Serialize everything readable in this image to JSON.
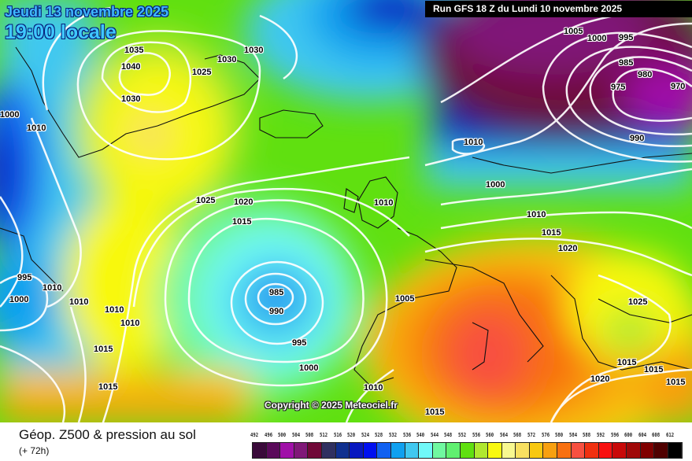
{
  "header": {
    "date": "Jeudi 13 novembre 2025",
    "time": "19:00 locale",
    "run": "Run GFS 18 Z du Lundi 10 novembre 2025"
  },
  "map": {
    "copyright": "Copyright © 2025 Meteociel.fr",
    "isobar_labels": [
      "1035",
      "1040",
      "1030",
      "1025",
      "1030",
      "1030",
      "1005",
      "1000",
      "995",
      "985",
      "980",
      "975",
      "970",
      "990",
      "1010",
      "1000",
      "1010",
      "1010",
      "1015",
      "1020",
      "1025",
      "1020",
      "1015",
      "985",
      "990",
      "995",
      "1000",
      "1005",
      "1025",
      "1010",
      "1010",
      "1015",
      "1015",
      "1000",
      "1010",
      "1010",
      "995",
      "1000",
      "1010",
      "1015",
      "1015",
      "1020",
      "1015",
      "1010",
      "1015"
    ]
  },
  "footer": {
    "title": "Géop. Z500 & pression au sol",
    "subtitle": "(+ 72h)"
  },
  "legend": {
    "values": [
      "492",
      "496",
      "500",
      "504",
      "508",
      "512",
      "516",
      "520",
      "524",
      "528",
      "532",
      "536",
      "540",
      "544",
      "548",
      "552",
      "556",
      "560",
      "564",
      "568",
      "572",
      "576",
      "580",
      "584",
      "588",
      "592",
      "596",
      "600",
      "604",
      "608",
      "612"
    ],
    "colors": [
      "#3a0a3a",
      "#5a0a5a",
      "#a010a8",
      "#801878",
      "#700838",
      "#303060",
      "#103090",
      "#0818c0",
      "#0010f0",
      "#1060f0",
      "#10a0f0",
      "#40c8f0",
      "#70f8f8",
      "#70f8a0",
      "#60f070",
      "#60e010",
      "#b0e830",
      "#f8f810",
      "#f8f890",
      "#f8e060",
      "#f8c810",
      "#f8a010",
      "#f87010",
      "#f85040",
      "#f03010",
      "#f81010",
      "#c80808",
      "#a00808",
      "#800000",
      "#500000",
      "#000000"
    ]
  }
}
